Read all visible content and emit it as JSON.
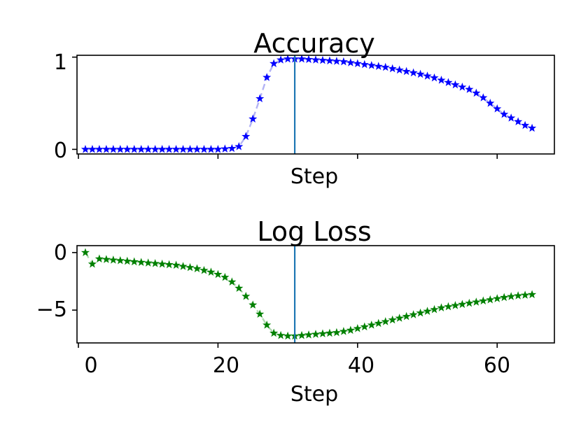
{
  "chart_data": [
    {
      "type": "line",
      "title": "Accuracy",
      "xlabel": "Step",
      "ylabel": "",
      "xlim": [
        -0.2,
        68.2
      ],
      "ylim": [
        -0.05,
        1.02
      ],
      "xticks": [
        0,
        20,
        40,
        60
      ],
      "xtick_labels_visible": false,
      "yticks": [
        0,
        1
      ],
      "ytick_labels": [
        "0",
        "1"
      ],
      "vline_x": 31,
      "marker": "star",
      "line_style": "dashed",
      "color": "#0000ff",
      "line_color": "#b3b3f5",
      "grid": false,
      "series": [
        {
          "x": [
            1,
            2,
            3,
            4,
            5,
            6,
            7,
            8,
            9,
            10,
            11,
            12,
            13,
            14,
            15,
            16,
            17,
            18,
            19,
            20,
            21,
            22,
            23,
            24,
            25,
            26,
            27,
            28,
            29,
            30,
            31,
            32,
            33,
            34,
            35,
            36,
            37,
            38,
            39,
            40,
            41,
            42,
            43,
            44,
            45,
            46,
            47,
            48,
            49,
            50,
            51,
            52,
            53,
            54,
            55,
            56,
            57,
            58,
            59,
            60,
            61,
            62,
            63,
            64,
            65
          ],
          "values": [
            0.0,
            0.0,
            0.0,
            0.0,
            0.0,
            0.0,
            0.0,
            0.0,
            0.0,
            0.0,
            0.0,
            0.0,
            0.0,
            0.0,
            0.0,
            0.0,
            0.0,
            0.0,
            0.0,
            0.0,
            0.005,
            0.01,
            0.03,
            0.14,
            0.33,
            0.55,
            0.78,
            0.93,
            0.97,
            0.98,
            0.98,
            0.98,
            0.975,
            0.97,
            0.965,
            0.96,
            0.955,
            0.95,
            0.94,
            0.93,
            0.92,
            0.91,
            0.9,
            0.89,
            0.875,
            0.86,
            0.845,
            0.83,
            0.815,
            0.795,
            0.775,
            0.75,
            0.725,
            0.7,
            0.675,
            0.65,
            0.61,
            0.56,
            0.5,
            0.44,
            0.38,
            0.34,
            0.3,
            0.26,
            0.23
          ]
        }
      ]
    },
    {
      "type": "line",
      "title": "Log Loss",
      "xlabel": "Step",
      "ylabel": "",
      "xlim": [
        -0.2,
        68.2
      ],
      "ylim": [
        -7.85,
        0.6
      ],
      "xticks": [
        0,
        20,
        40,
        60
      ],
      "xtick_labels": [
        "0",
        "20",
        "40",
        "60"
      ],
      "yticks": [
        0,
        -5
      ],
      "ytick_labels": [
        "0",
        "−5"
      ],
      "vline_x": 31,
      "marker": "star",
      "line_style": "dashed",
      "color": "#008000",
      "line_color": "#b3d9b3",
      "grid": false,
      "series": [
        {
          "x": [
            1,
            2,
            3,
            4,
            5,
            6,
            7,
            8,
            9,
            10,
            11,
            12,
            13,
            14,
            15,
            16,
            17,
            18,
            19,
            20,
            21,
            22,
            23,
            24,
            25,
            26,
            27,
            28,
            29,
            30,
            31,
            32,
            33,
            34,
            35,
            36,
            37,
            38,
            39,
            40,
            41,
            42,
            43,
            44,
            45,
            46,
            47,
            48,
            49,
            50,
            51,
            52,
            53,
            54,
            55,
            56,
            57,
            58,
            59,
            60,
            61,
            62,
            63,
            64,
            65
          ],
          "values": [
            0.0,
            -1.0,
            -0.55,
            -0.6,
            -0.65,
            -0.7,
            -0.75,
            -0.8,
            -0.85,
            -0.9,
            -0.95,
            -1.0,
            -1.05,
            -1.1,
            -1.2,
            -1.3,
            -1.4,
            -1.55,
            -1.7,
            -1.9,
            -2.15,
            -2.55,
            -3.1,
            -3.8,
            -4.55,
            -5.35,
            -6.3,
            -7.0,
            -7.2,
            -7.25,
            -7.25,
            -7.2,
            -7.15,
            -7.1,
            -7.05,
            -7.0,
            -6.95,
            -6.85,
            -6.75,
            -6.6,
            -6.45,
            -6.3,
            -6.15,
            -6.0,
            -5.85,
            -5.7,
            -5.55,
            -5.4,
            -5.25,
            -5.1,
            -4.95,
            -4.8,
            -4.7,
            -4.6,
            -4.5,
            -4.4,
            -4.3,
            -4.2,
            -4.1,
            -4.0,
            -3.9,
            -3.82,
            -3.75,
            -3.7,
            -3.65
          ]
        }
      ]
    }
  ]
}
